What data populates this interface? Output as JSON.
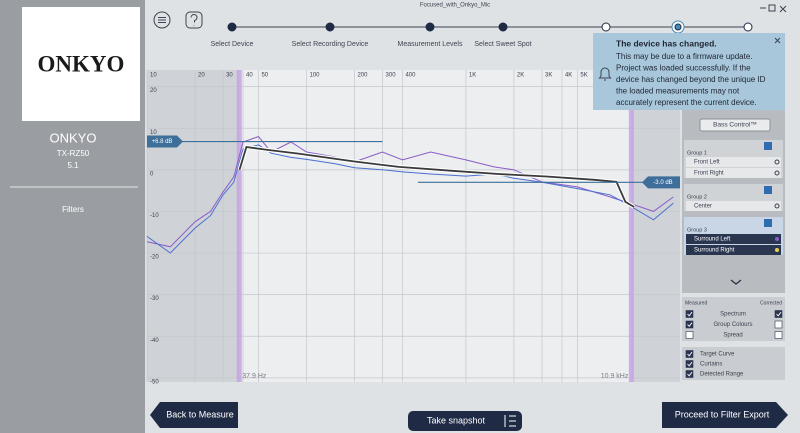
{
  "window": {
    "title": "Focused_with_Onkyo_Mic"
  },
  "sidebar": {
    "logo": "ONKYO",
    "device": "ONKYO",
    "model": "TX-RZ50",
    "config": "5.1",
    "section": "Filters"
  },
  "steps": [
    "Select Device",
    "Select Recording Device",
    "Measurement Levels",
    "Select Sweet Spot"
  ],
  "notification": {
    "title": "The device has changed.",
    "lines": [
      "This may be due to a firmware update.",
      "Project was loaded successfully. If the",
      "device has changed beyond the unique ID",
      "the loaded measurements may not",
      "accurately represent the current device."
    ]
  },
  "chart_data": {
    "type": "line",
    "x_scale": "log",
    "xlim": [
      10,
      22000
    ],
    "ylim": [
      -51,
      24
    ],
    "xticks": [
      10,
      20,
      30,
      40,
      50,
      100,
      200,
      300,
      400,
      {
        "value": 1000,
        "label": "1K"
      },
      {
        "value": 2000,
        "label": "2K"
      },
      {
        "value": 3000,
        "label": "3K"
      },
      {
        "value": 4000,
        "label": "4K"
      },
      {
        "value": 5000,
        "label": "5K"
      }
    ],
    "yticks": [
      20,
      10,
      0,
      -10,
      -20,
      -30,
      -40,
      -50
    ],
    "gain_markers": [
      {
        "value": 6.8,
        "label": "+6.8 dB"
      },
      {
        "value": -3.0,
        "label": "-3.0 dB"
      }
    ],
    "range": [
      {
        "value": 37.9,
        "label": "37.9 Hz"
      },
      {
        "value": 10900,
        "label": "10.9 kHz"
      }
    ],
    "series": [
      {
        "color": "#8a5cc8",
        "x": [
          10,
          14,
          20,
          25,
          30,
          35,
          40,
          50,
          60,
          80,
          100,
          150,
          200,
          300,
          400,
          600,
          1000,
          1500,
          2000,
          3000,
          5000,
          8000,
          10000,
          15000,
          20000
        ],
        "values": [
          -17.3,
          -18.5,
          -12.5,
          -10,
          -5.3,
          -1.7,
          6.7,
          8,
          4.3,
          6.7,
          4.3,
          3.1,
          1.9,
          4.3,
          2.4,
          4.3,
          2.4,
          0.7,
          0,
          -2.9,
          -4.1,
          -6.5,
          -7.7,
          -10,
          -6.5
        ]
      },
      {
        "color": "#4a6fd0",
        "x": [
          10,
          14,
          20,
          25,
          30,
          35,
          40,
          50,
          60,
          80,
          100,
          150,
          200,
          300,
          400,
          600,
          1000,
          1500,
          2000,
          3000,
          5000,
          8000,
          10000,
          15000,
          20000
        ],
        "values": [
          -16,
          -20,
          -14,
          -11,
          -6,
          -3,
          5,
          6,
          4,
          3,
          2.5,
          1.5,
          0.5,
          0,
          -0.5,
          -1,
          -1.5,
          -1,
          -2,
          -3,
          -4.5,
          -6,
          -8,
          -12,
          -8
        ]
      },
      {
        "color": "#3a3a3a",
        "x": [
          38,
          42,
          57,
          89,
          200,
          380,
          800,
          1600,
          3200,
          6400,
          8800,
          10000,
          11300
        ],
        "values": [
          0,
          5.5,
          4.8,
          3.9,
          2,
          0.7,
          -0.2,
          -1,
          -1.6,
          -2.4,
          -2.9,
          -7.7,
          -8.9
        ]
      }
    ]
  },
  "groups_panel": {
    "bass": "Bass Control™",
    "groups": [
      {
        "name": "Group 1",
        "channels": [
          "Front Left",
          "Front Right"
        ]
      },
      {
        "name": "Group 2",
        "channels": [
          "Center"
        ]
      },
      {
        "name": "Group 3",
        "channels": [
          "Surround Left",
          "Surround Right"
        ]
      }
    ]
  },
  "display_options": {
    "measured": "Measured",
    "corrected": "Corrected",
    "rows": [
      "Spectrum",
      "Group Colours",
      "Spread"
    ],
    "toggles": [
      "Target Curve",
      "Curtains",
      "Detected Range"
    ]
  },
  "buttons": {
    "back": "Back to Measure",
    "snapshot": "Take snapshot",
    "proceed": "Proceed to Filter Export"
  }
}
